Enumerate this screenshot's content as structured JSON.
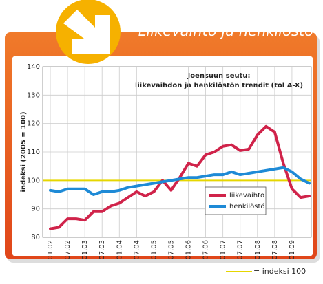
{
  "header": {
    "title": "Liikevaihto ja henkilöstö"
  },
  "chart_data": {
    "type": "line",
    "title": "Joensuun seutu:",
    "subtitle": "liikevaihdon ja henkilöstön trendit (tol A-X)",
    "y_label": "indeksi (2005 = 100)",
    "categories": [
      "01.02",
      null,
      "07.02",
      null,
      "01.03",
      null,
      "07.03",
      null,
      "01.04",
      null,
      "07.04",
      null,
      "01.05",
      null,
      "07.05",
      null,
      "01.06",
      null,
      "07.06",
      null,
      "01.07",
      null,
      "07.07",
      null,
      "01.08",
      null,
      "07.08",
      null,
      "01.09",
      null,
      null
    ],
    "series": [
      {
        "name": "liikevaihto",
        "color": "#d0234a",
        "values": [
          83,
          83.5,
          86.5,
          86.5,
          86,
          89,
          89,
          91,
          92,
          94,
          96,
          94.5,
          96,
          100,
          96.5,
          101,
          106,
          105,
          109,
          110,
          112,
          112.5,
          110.5,
          111,
          116,
          119,
          117,
          106,
          97,
          94,
          94.5
        ]
      },
      {
        "name": "henkilöstö",
        "color": "#1e8ad6",
        "values": [
          96.5,
          96,
          97,
          97,
          97,
          95,
          96,
          96,
          96.5,
          97.5,
          98,
          98.5,
          99,
          99.5,
          100,
          100.5,
          101,
          101,
          101.5,
          102,
          102,
          103,
          102,
          102.5,
          103,
          103.5,
          104,
          104.5,
          103,
          100.5,
          99
        ]
      }
    ],
    "reference_line": {
      "value": 100,
      "label": "= indeksi 100",
      "color": "#e6d600"
    },
    "ylim": [
      80,
      140
    ],
    "yticks": [
      80,
      90,
      100,
      110,
      120,
      130,
      140
    ],
    "grid": true,
    "legend": "lower right"
  }
}
